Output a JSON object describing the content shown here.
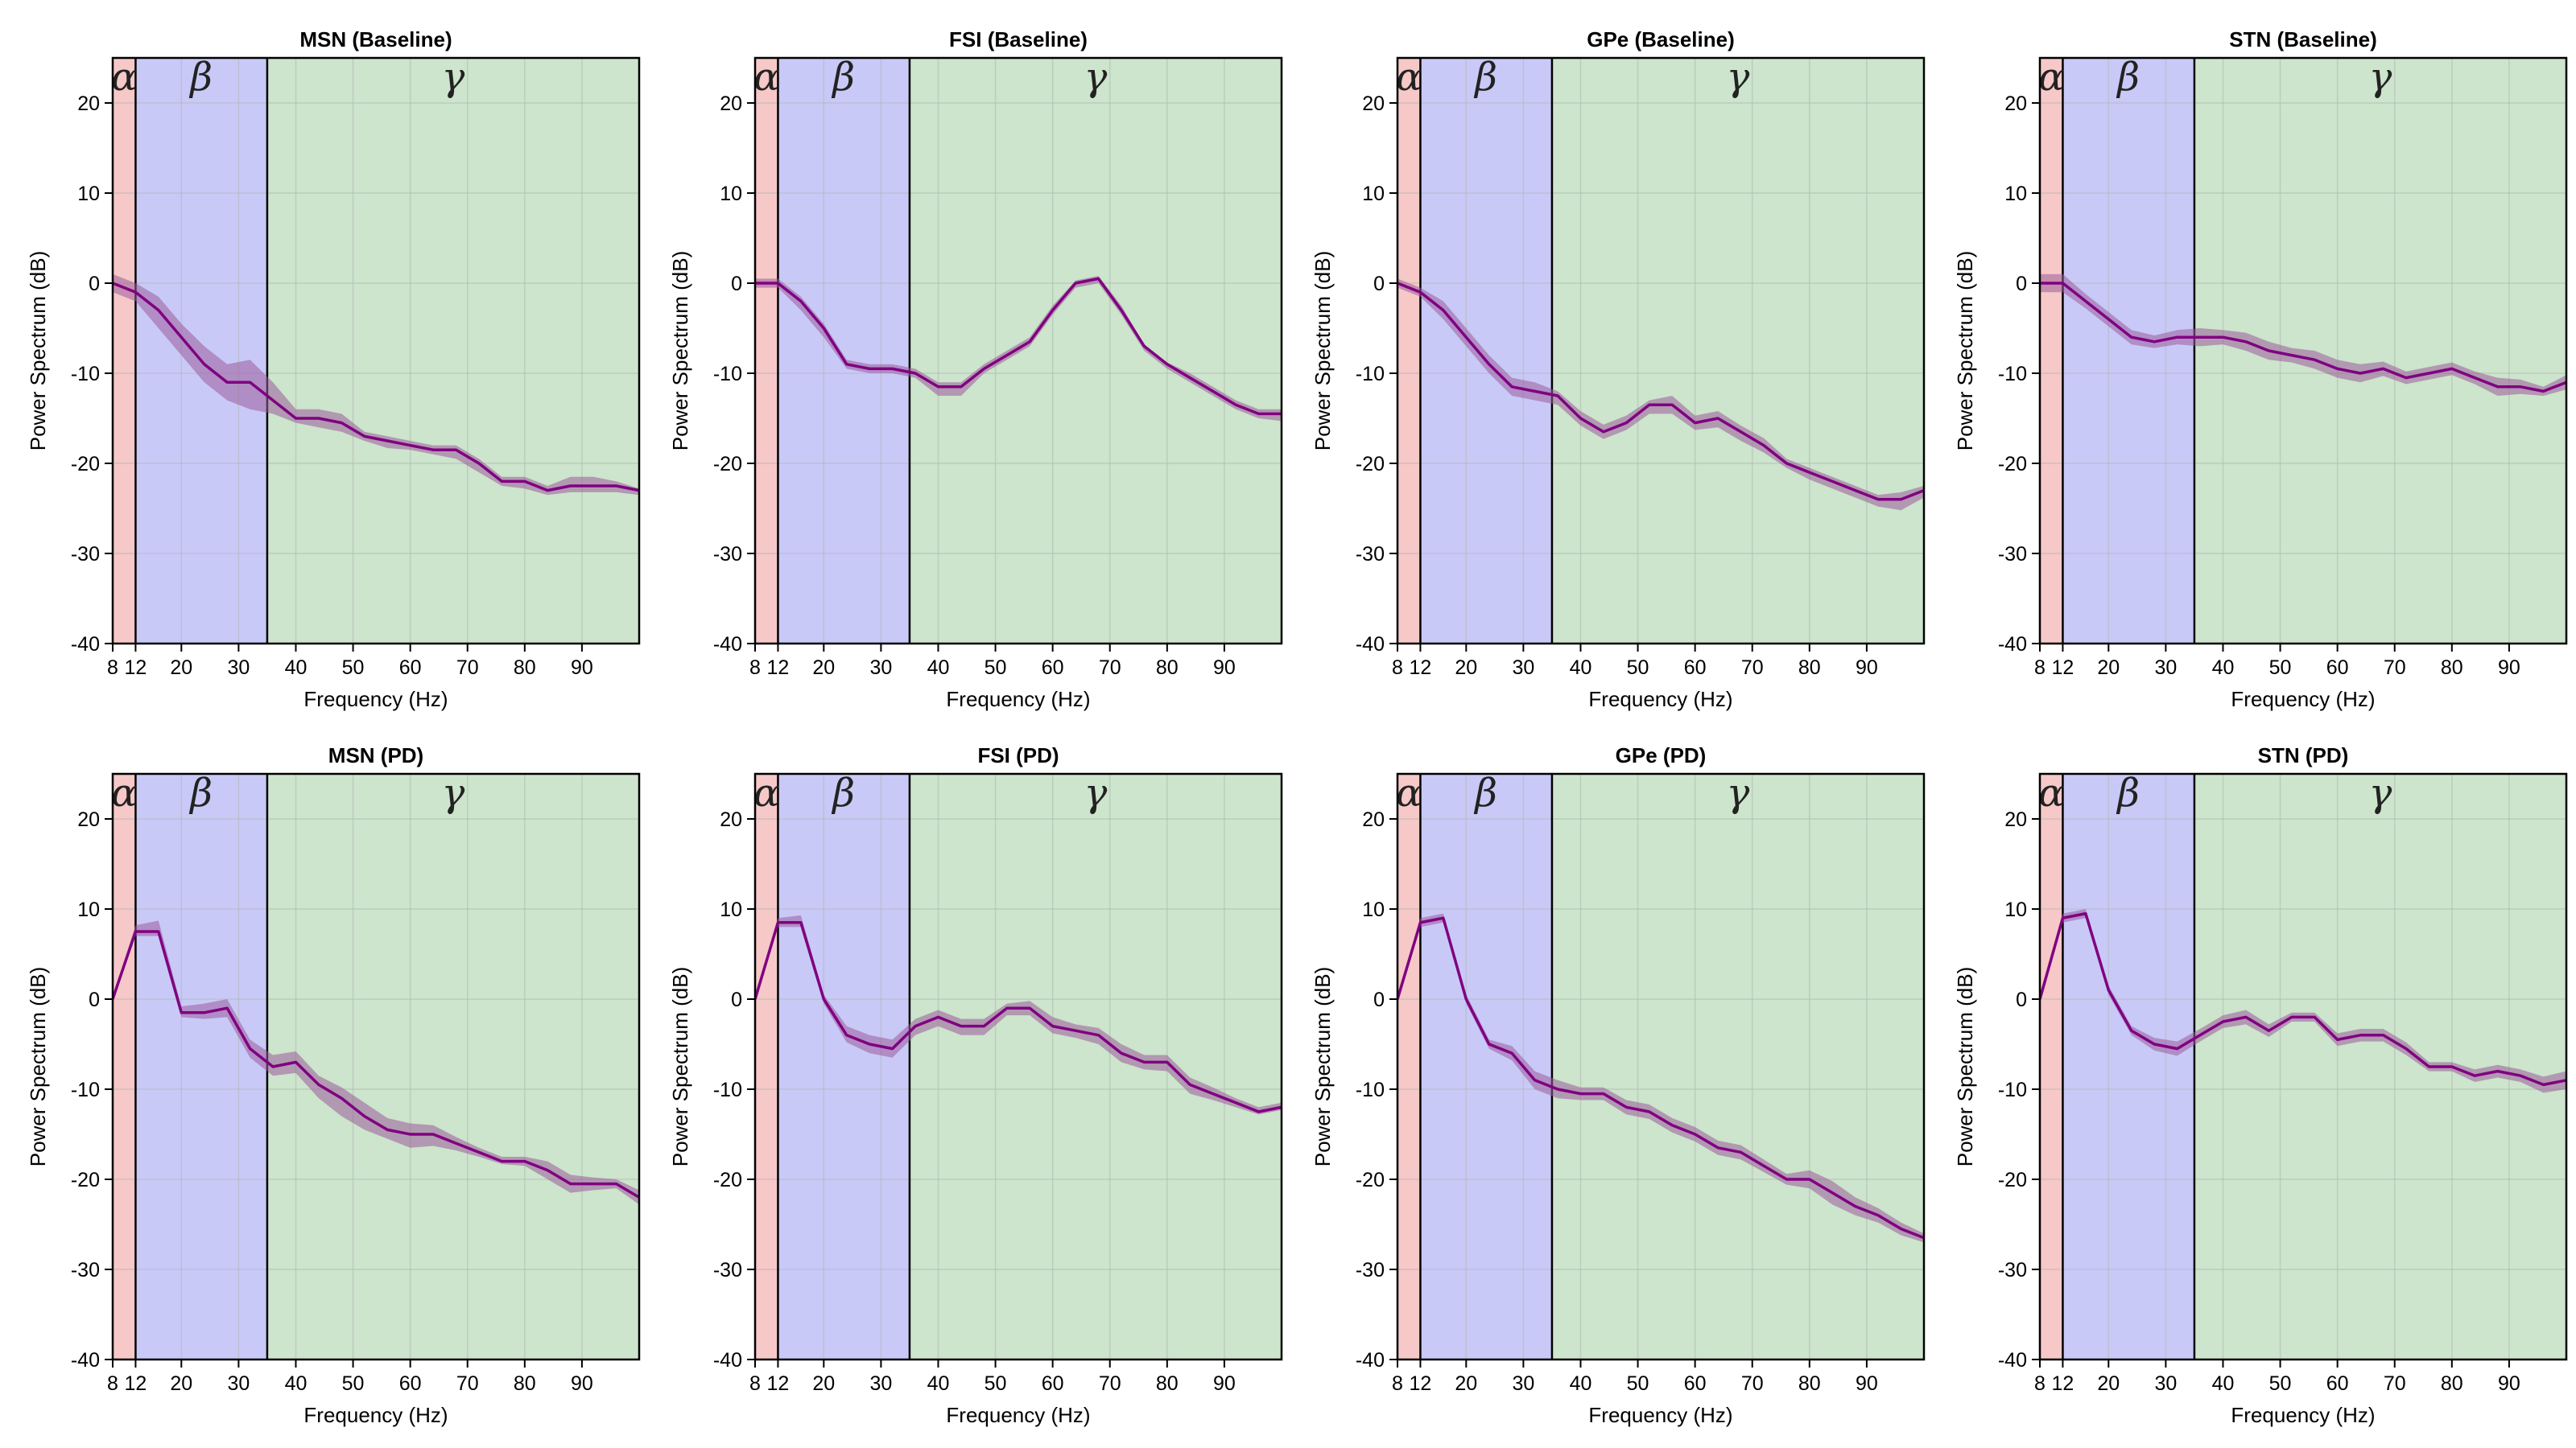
{
  "figure": {
    "band_colors": {
      "alpha": "#f6c8c8",
      "beta": "#c9c9f8",
      "gamma": "#cde4cd"
    },
    "line_color": "#800080",
    "fill_color": "#9b5b9b",
    "grid_color": "#b0b8b0",
    "band_symbols": {
      "alpha": "α",
      "beta": "β",
      "gamma": "γ"
    }
  },
  "chart_data": [
    {
      "type": "line",
      "title": "MSN (Baseline)",
      "xlabel": "Frequency (Hz)",
      "ylabel": "Power Spectrum (dB)",
      "xlim": [
        8,
        100
      ],
      "ylim": [
        -40,
        25
      ],
      "xticks": [
        8,
        12,
        20,
        30,
        40,
        50,
        60,
        70,
        80,
        90
      ],
      "yticks": [
        -40,
        -30,
        -20,
        -10,
        0,
        10,
        20
      ],
      "bands": [
        {
          "name": "alpha",
          "range": [
            8,
            12
          ]
        },
        {
          "name": "beta",
          "range": [
            12,
            35
          ]
        },
        {
          "name": "gamma",
          "range": [
            35,
            100
          ]
        }
      ],
      "x": [
        8,
        12,
        16,
        20,
        24,
        28,
        32,
        36,
        40,
        44,
        48,
        52,
        56,
        60,
        64,
        68,
        72,
        76,
        80,
        84,
        88,
        92,
        96,
        100
      ],
      "mean": [
        0,
        -1,
        -3,
        -6,
        -9,
        -11,
        -11,
        -13,
        -15,
        -15,
        -15.5,
        -17,
        -17.5,
        -18,
        -18.5,
        -18.5,
        -20,
        -22,
        -22,
        -23,
        -22.5,
        -22.5,
        -22.5,
        -23
      ],
      "lower": [
        -1,
        -2,
        -5,
        -8,
        -11,
        -13,
        -14,
        -14.5,
        -15.5,
        -16,
        -16.5,
        -17.5,
        -18.3,
        -18.5,
        -19,
        -19.5,
        -21,
        -22.5,
        -22.8,
        -23.5,
        -23.2,
        -23.2,
        -23.2,
        -23.5
      ],
      "upper": [
        1,
        0,
        -1.5,
        -4.5,
        -7,
        -9,
        -8.5,
        -11,
        -14,
        -14,
        -14.5,
        -16.5,
        -17,
        -17.5,
        -18,
        -18,
        -19.5,
        -21.5,
        -21.5,
        -22.5,
        -21.5,
        -21.5,
        -22,
        -22.8
      ]
    },
    {
      "type": "line",
      "title": "FSI (Baseline)",
      "xlabel": "Frequency (Hz)",
      "ylabel": "Power Spectrum (dB)",
      "xlim": [
        8,
        100
      ],
      "ylim": [
        -40,
        25
      ],
      "xticks": [
        8,
        12,
        20,
        30,
        40,
        50,
        60,
        70,
        80,
        90
      ],
      "yticks": [
        -40,
        -30,
        -20,
        -10,
        0,
        10,
        20
      ],
      "bands": [
        {
          "name": "alpha",
          "range": [
            8,
            12
          ]
        },
        {
          "name": "beta",
          "range": [
            12,
            35
          ]
        },
        {
          "name": "gamma",
          "range": [
            35,
            100
          ]
        }
      ],
      "x": [
        8,
        12,
        16,
        20,
        24,
        28,
        32,
        36,
        40,
        44,
        48,
        52,
        56,
        60,
        64,
        68,
        72,
        76,
        80,
        84,
        88,
        92,
        96,
        100
      ],
      "mean": [
        0,
        0,
        -2,
        -5,
        -9,
        -9.5,
        -9.5,
        -10,
        -11.5,
        -11.5,
        -9.5,
        -8,
        -6.5,
        -3,
        0,
        0.5,
        -3,
        -7,
        -9,
        -10.5,
        -12,
        -13.5,
        -14.5,
        -14.5
      ],
      "lower": [
        -0.5,
        -0.5,
        -3,
        -6,
        -9.5,
        -10,
        -10,
        -10.5,
        -12.5,
        -12.5,
        -10,
        -8.5,
        -7,
        -3.5,
        -0.5,
        0,
        -3.5,
        -7.5,
        -9.5,
        -11,
        -12.5,
        -14,
        -15,
        -15.3
      ],
      "upper": [
        0.5,
        0.5,
        -1.5,
        -4.5,
        -8.5,
        -9,
        -9,
        -9.5,
        -11,
        -11,
        -9,
        -7.5,
        -6,
        -2.5,
        0.3,
        0.8,
        -2.5,
        -6.8,
        -8.8,
        -10,
        -11.5,
        -13,
        -14,
        -14
      ]
    },
    {
      "type": "line",
      "title": "GPe (Baseline)",
      "xlabel": "Frequency (Hz)",
      "ylabel": "Power Spectrum (dB)",
      "xlim": [
        8,
        100
      ],
      "ylim": [
        -40,
        25
      ],
      "xticks": [
        8,
        12,
        20,
        30,
        40,
        50,
        60,
        70,
        80,
        90
      ],
      "yticks": [
        -40,
        -30,
        -20,
        -10,
        0,
        10,
        20
      ],
      "bands": [
        {
          "name": "alpha",
          "range": [
            8,
            12
          ]
        },
        {
          "name": "beta",
          "range": [
            12,
            35
          ]
        },
        {
          "name": "gamma",
          "range": [
            35,
            100
          ]
        }
      ],
      "x": [
        8,
        12,
        16,
        20,
        24,
        28,
        32,
        36,
        40,
        44,
        48,
        52,
        56,
        60,
        64,
        68,
        72,
        76,
        80,
        84,
        88,
        92,
        96,
        100
      ],
      "mean": [
        0,
        -1,
        -3,
        -6,
        -9,
        -11.5,
        -12,
        -12.5,
        -15,
        -16.5,
        -15.5,
        -13.5,
        -13.5,
        -15.5,
        -15,
        -16.5,
        -18,
        -20,
        -21,
        -22,
        -23,
        -24,
        -24,
        -23
      ],
      "lower": [
        -0.5,
        -1.5,
        -4,
        -7,
        -10,
        -12.5,
        -13,
        -13.5,
        -15.8,
        -17.3,
        -16.3,
        -14.5,
        -14.5,
        -16.3,
        -16,
        -17.5,
        -18.8,
        -20.5,
        -21.8,
        -22.8,
        -23.8,
        -24.8,
        -25.2,
        -23.8
      ],
      "upper": [
        0.5,
        -0.5,
        -2,
        -5,
        -8,
        -10.5,
        -11,
        -12,
        -14.2,
        -15.7,
        -14.7,
        -13,
        -12.5,
        -14.7,
        -14.2,
        -15.8,
        -17.2,
        -19.5,
        -20.5,
        -21.5,
        -22.5,
        -23.5,
        -23.2,
        -22.5
      ]
    },
    {
      "type": "line",
      "title": "STN (Baseline)",
      "xlabel": "Frequency (Hz)",
      "ylabel": "Power Spectrum (dB)",
      "xlim": [
        8,
        100
      ],
      "ylim": [
        -40,
        25
      ],
      "xticks": [
        8,
        12,
        20,
        30,
        40,
        50,
        60,
        70,
        80,
        90
      ],
      "yticks": [
        -40,
        -30,
        -20,
        -10,
        0,
        10,
        20
      ],
      "bands": [
        {
          "name": "alpha",
          "range": [
            8,
            12
          ]
        },
        {
          "name": "beta",
          "range": [
            12,
            35
          ]
        },
        {
          "name": "gamma",
          "range": [
            35,
            100
          ]
        }
      ],
      "x": [
        8,
        12,
        16,
        20,
        24,
        28,
        32,
        36,
        40,
        44,
        48,
        52,
        56,
        60,
        64,
        68,
        72,
        76,
        80,
        84,
        88,
        92,
        96,
        100
      ],
      "mean": [
        0,
        0,
        -2,
        -4,
        -6,
        -6.5,
        -6,
        -6,
        -6,
        -6.5,
        -7.5,
        -8,
        -8.5,
        -9.5,
        -10,
        -9.5,
        -10.5,
        -10,
        -9.5,
        -10.5,
        -11.5,
        -11.5,
        -12,
        -11
      ],
      "lower": [
        -1,
        -1,
        -2.8,
        -4.8,
        -6.8,
        -7.2,
        -6.8,
        -7,
        -6.8,
        -7.5,
        -8.5,
        -8.8,
        -9.5,
        -10.5,
        -11,
        -10.3,
        -11.2,
        -10.7,
        -10.2,
        -11.2,
        -12.5,
        -12.3,
        -12.5,
        -11.8
      ],
      "upper": [
        1,
        1,
        -1.2,
        -3.2,
        -5.2,
        -5.8,
        -5.2,
        -5,
        -5.2,
        -5.5,
        -6.5,
        -7.2,
        -7.5,
        -8.5,
        -9,
        -8.7,
        -9.8,
        -9.3,
        -8.8,
        -9.8,
        -10.5,
        -10.7,
        -11.5,
        -10.2
      ]
    },
    {
      "type": "line",
      "title": "MSN (PD)",
      "xlabel": "Frequency (Hz)",
      "ylabel": "Power Spectrum (dB)",
      "xlim": [
        8,
        100
      ],
      "ylim": [
        -40,
        25
      ],
      "xticks": [
        8,
        12,
        20,
        30,
        40,
        50,
        60,
        70,
        80,
        90
      ],
      "yticks": [
        -40,
        -30,
        -20,
        -10,
        0,
        10,
        20
      ],
      "bands": [
        {
          "name": "alpha",
          "range": [
            8,
            12
          ]
        },
        {
          "name": "beta",
          "range": [
            12,
            35
          ]
        },
        {
          "name": "gamma",
          "range": [
            35,
            100
          ]
        }
      ],
      "x": [
        8,
        12,
        16,
        20,
        24,
        28,
        32,
        36,
        40,
        44,
        48,
        52,
        56,
        60,
        64,
        68,
        72,
        76,
        80,
        84,
        88,
        92,
        96,
        100
      ],
      "mean": [
        0,
        7.5,
        7.5,
        -1.5,
        -1.5,
        -1,
        -5.5,
        -7.5,
        -7,
        -9.5,
        -11,
        -13,
        -14.5,
        -15,
        -15,
        -16,
        -17,
        -18,
        -18,
        -19,
        -20.5,
        -20.5,
        -20.5,
        -22
      ],
      "lower": [
        -0.3,
        7,
        7,
        -2,
        -2.2,
        -2,
        -6.5,
        -8.5,
        -8.2,
        -11,
        -13,
        -14.5,
        -15.5,
        -16.5,
        -16.3,
        -16.8,
        -17.5,
        -18.3,
        -18.5,
        -20,
        -21.5,
        -21.2,
        -21,
        -22.8
      ],
      "upper": [
        0.3,
        8.2,
        8.7,
        -0.8,
        -0.5,
        0,
        -4.5,
        -6.2,
        -5.8,
        -8.5,
        -9.8,
        -11.5,
        -13.2,
        -13.8,
        -14,
        -15.3,
        -16.5,
        -17.5,
        -17.5,
        -18,
        -19.5,
        -19.8,
        -20,
        -21.2
      ]
    },
    {
      "type": "line",
      "title": "FSI (PD)",
      "xlabel": "Frequency (Hz)",
      "ylabel": "Power Spectrum (dB)",
      "xlim": [
        8,
        100
      ],
      "ylim": [
        -40,
        25
      ],
      "xticks": [
        8,
        12,
        20,
        30,
        40,
        50,
        60,
        70,
        80,
        90
      ],
      "yticks": [
        -40,
        -30,
        -20,
        -10,
        0,
        10,
        20
      ],
      "bands": [
        {
          "name": "alpha",
          "range": [
            8,
            12
          ]
        },
        {
          "name": "beta",
          "range": [
            12,
            35
          ]
        },
        {
          "name": "gamma",
          "range": [
            35,
            100
          ]
        }
      ],
      "x": [
        8,
        12,
        16,
        20,
        24,
        28,
        32,
        36,
        40,
        44,
        48,
        52,
        56,
        60,
        64,
        68,
        72,
        76,
        80,
        84,
        88,
        92,
        96,
        100
      ],
      "mean": [
        0,
        8.5,
        8.5,
        0,
        -4,
        -5,
        -5.5,
        -3,
        -2,
        -3,
        -3,
        -1,
        -1,
        -3,
        -3.5,
        -4,
        -6,
        -7,
        -7,
        -9.5,
        -10.5,
        -11.5,
        -12.5,
        -12
      ],
      "lower": [
        -0.3,
        8,
        8,
        -0.5,
        -4.8,
        -6,
        -6.5,
        -4,
        -3,
        -4,
        -4,
        -1.8,
        -1.8,
        -3.8,
        -4.3,
        -5,
        -7,
        -7.8,
        -8,
        -10.5,
        -11.2,
        -12,
        -12.8,
        -12.3
      ],
      "upper": [
        0.3,
        9,
        9.3,
        0.5,
        -3,
        -4,
        -4.5,
        -2.2,
        -1.2,
        -2.2,
        -2.2,
        -0.5,
        -0.2,
        -2,
        -2.8,
        -3.2,
        -5,
        -6.2,
        -6.2,
        -8.7,
        -9.8,
        -11,
        -12,
        -11.5
      ]
    },
    {
      "type": "line",
      "title": "GPe (PD)",
      "xlabel": "Frequency (Hz)",
      "ylabel": "Power Spectrum (dB)",
      "xlim": [
        8,
        100
      ],
      "ylim": [
        -40,
        25
      ],
      "xticks": [
        8,
        12,
        20,
        30,
        40,
        50,
        60,
        70,
        80,
        90
      ],
      "yticks": [
        -40,
        -30,
        -20,
        -10,
        0,
        10,
        20
      ],
      "bands": [
        {
          "name": "alpha",
          "range": [
            8,
            12
          ]
        },
        {
          "name": "beta",
          "range": [
            12,
            35
          ]
        },
        {
          "name": "gamma",
          "range": [
            35,
            100
          ]
        }
      ],
      "x": [
        8,
        12,
        16,
        20,
        24,
        28,
        32,
        36,
        40,
        44,
        48,
        52,
        56,
        60,
        64,
        68,
        72,
        76,
        80,
        84,
        88,
        92,
        96,
        100
      ],
      "mean": [
        0,
        8.5,
        9,
        0,
        -5,
        -6,
        -9,
        -10,
        -10.5,
        -10.5,
        -12,
        -12.5,
        -14,
        -15,
        -16.5,
        -17,
        -18.5,
        -20,
        -20,
        -21.5,
        -23,
        -24,
        -25.5,
        -26.5
      ],
      "lower": [
        -0.3,
        8,
        8.5,
        -0.5,
        -5.5,
        -6.8,
        -10,
        -11,
        -11.2,
        -11.2,
        -12.8,
        -13.3,
        -14.8,
        -15.8,
        -17.3,
        -17.8,
        -19.2,
        -20.6,
        -21,
        -22.8,
        -24,
        -24.8,
        -26.2,
        -27
      ],
      "upper": [
        0.3,
        9,
        9.5,
        0.5,
        -4.5,
        -5.2,
        -8,
        -9,
        -9.8,
        -9.8,
        -11.2,
        -11.7,
        -13.2,
        -14.2,
        -15.7,
        -16.2,
        -17.8,
        -19.4,
        -19,
        -20.2,
        -22,
        -23.2,
        -24.8,
        -26
      ]
    },
    {
      "type": "line",
      "title": "STN (PD)",
      "xlabel": "Frequency (Hz)",
      "ylabel": "Power Spectrum (dB)",
      "xlim": [
        8,
        100
      ],
      "ylim": [
        -40,
        25
      ],
      "xticks": [
        8,
        12,
        20,
        30,
        40,
        50,
        60,
        70,
        80,
        90
      ],
      "yticks": [
        -40,
        -30,
        -20,
        -10,
        0,
        10,
        20
      ],
      "bands": [
        {
          "name": "alpha",
          "range": [
            8,
            12
          ]
        },
        {
          "name": "beta",
          "range": [
            12,
            35
          ]
        },
        {
          "name": "gamma",
          "range": [
            35,
            100
          ]
        }
      ],
      "x": [
        8,
        12,
        16,
        20,
        24,
        28,
        32,
        36,
        40,
        44,
        48,
        52,
        56,
        60,
        64,
        68,
        72,
        76,
        80,
        84,
        88,
        92,
        96,
        100
      ],
      "mean": [
        0,
        9,
        9.5,
        1,
        -3.5,
        -5,
        -5.5,
        -4,
        -2.5,
        -2,
        -3.5,
        -2,
        -2,
        -4.5,
        -4,
        -4,
        -5.5,
        -7.5,
        -7.5,
        -8.5,
        -8,
        -8.5,
        -9.5,
        -9
      ],
      "lower": [
        -0.3,
        8.5,
        9,
        0.5,
        -4,
        -5.7,
        -6.3,
        -4.7,
        -3.2,
        -2.8,
        -4.2,
        -2.5,
        -2.5,
        -5.2,
        -4.7,
        -4.7,
        -6.2,
        -8,
        -8,
        -9.2,
        -8.7,
        -9.2,
        -10.4,
        -10
      ],
      "upper": [
        0.3,
        9.5,
        10,
        1.5,
        -3,
        -4.3,
        -4.7,
        -3.3,
        -1.8,
        -1.2,
        -2.8,
        -1.5,
        -1.5,
        -3.8,
        -3.3,
        -3.3,
        -4.8,
        -7,
        -7,
        -7.8,
        -7.3,
        -7.8,
        -8.6,
        -8
      ]
    }
  ]
}
